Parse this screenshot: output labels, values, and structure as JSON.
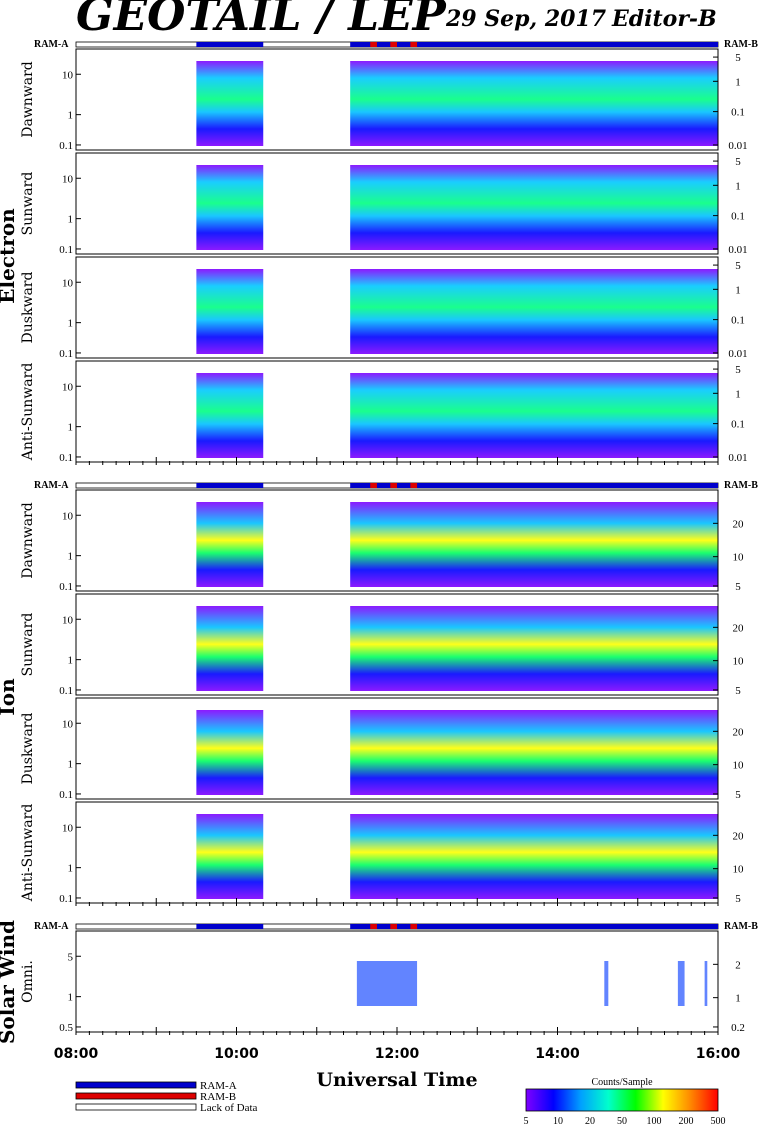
{
  "header": {
    "title": "GEOTAIL / LEP",
    "date": "29 Sep, 2017",
    "editor": "Editor-B"
  },
  "ram_labels": {
    "a": "RAM-A",
    "b": "RAM-B"
  },
  "colors": {
    "ram_a": "#0000cc",
    "ram_b": "#dd0000",
    "lack_of_data": "#ffffff"
  },
  "chart_data": {
    "type": "heatmap",
    "x_range": [
      "08:00",
      "16:00"
    ],
    "x_ticks": [
      "08:00",
      "10:00",
      "12:00",
      "14:00",
      "16:00"
    ],
    "xlabel": "Universal Time",
    "coverage": [
      {
        "start": "09:30",
        "end": "10:20",
        "mode": "RAM-A"
      },
      {
        "start": "11:25",
        "end": "16:00",
        "mode": "RAM-A"
      },
      {
        "start": "11:40",
        "end": "11:45",
        "mode": "RAM-B"
      },
      {
        "start": "11:55",
        "end": "12:00",
        "mode": "RAM-B"
      },
      {
        "start": "12:10",
        "end": "12:15",
        "mode": "RAM-B"
      }
    ],
    "groups": [
      {
        "name": "Electron",
        "panels": [
          {
            "label": "Dawnward",
            "left_ticks": [
              "10",
              "1",
              "0.1"
            ],
            "right_ticks": [
              "5",
              "1",
              "0.1",
              "0.01"
            ]
          },
          {
            "label": "Sunward",
            "left_ticks": [
              "10",
              "1",
              "0.1"
            ],
            "right_ticks": [
              "5",
              "1",
              "0.1",
              "0.01"
            ]
          },
          {
            "label": "Duskward",
            "left_ticks": [
              "10",
              "1",
              "0.1"
            ],
            "right_ticks": [
              "5",
              "1",
              "0.1",
              "0.01"
            ]
          },
          {
            "label": "Anti-Sunward",
            "left_ticks": [
              "10",
              "1",
              "0.1"
            ],
            "right_ticks": [
              "5",
              "1",
              "0.1",
              "0.01"
            ]
          }
        ]
      },
      {
        "name": "Ion",
        "panels": [
          {
            "label": "Dawnward",
            "left_ticks": [
              "10",
              "1",
              "0.1"
            ],
            "right_ticks": [
              "20",
              "10",
              "5"
            ]
          },
          {
            "label": "Sunward",
            "left_ticks": [
              "10",
              "1",
              "0.1"
            ],
            "right_ticks": [
              "20",
              "10",
              "5"
            ]
          },
          {
            "label": "Duskward",
            "left_ticks": [
              "10",
              "1",
              "0.1"
            ],
            "right_ticks": [
              "20",
              "10",
              "5"
            ]
          },
          {
            "label": "Anti-Sunward",
            "left_ticks": [
              "10",
              "1",
              "0.1"
            ],
            "right_ticks": [
              "20",
              "10",
              "5"
            ]
          }
        ]
      },
      {
        "name": "Solar Wind",
        "panels": [
          {
            "label": "Omni.",
            "left_ticks": [
              "5",
              "1",
              "0.5"
            ],
            "right_ticks": [
              "2",
              "1",
              "0.2"
            ]
          }
        ]
      }
    ],
    "colorbar": {
      "title": "Counts/Sample",
      "ticks": [
        "5",
        "10",
        "20",
        "50",
        "100",
        "200",
        "500"
      ],
      "colors": [
        "#7f00ff",
        "#0000ff",
        "#00a0ff",
        "#00ffcc",
        "#00ff00",
        "#ffff00",
        "#ff8800",
        "#ff0000"
      ]
    }
  },
  "legend": {
    "items": [
      {
        "label": "RAM-A",
        "color": "#0000cc"
      },
      {
        "label": "RAM-B",
        "color": "#dd0000"
      },
      {
        "label": "Lack of Data",
        "color": "#ffffff"
      }
    ]
  }
}
